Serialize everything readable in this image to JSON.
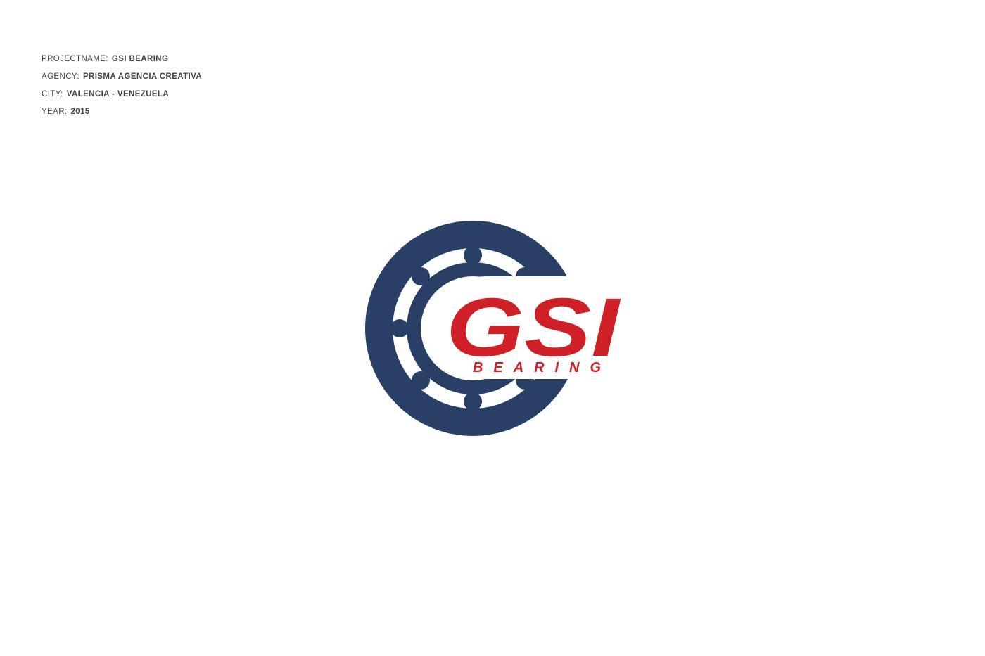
{
  "info": {
    "project_label": "PROJECTNAME:",
    "project_value": "GSI BEARING",
    "agency_label": "AGENCY:",
    "agency_value": "PRISMA AGENCIA CREATIVA",
    "city_label": "CITY:",
    "city_value": "VALENCIA - VENEZUELA",
    "year_label": "YEAR:",
    "year_value": "2015"
  },
  "logo": {
    "wordmark": "GSI",
    "subline": "BEARING",
    "primary_color": "#2a3f66",
    "accent_color": "#cf2027",
    "icon": "ball-bearing-icon"
  }
}
